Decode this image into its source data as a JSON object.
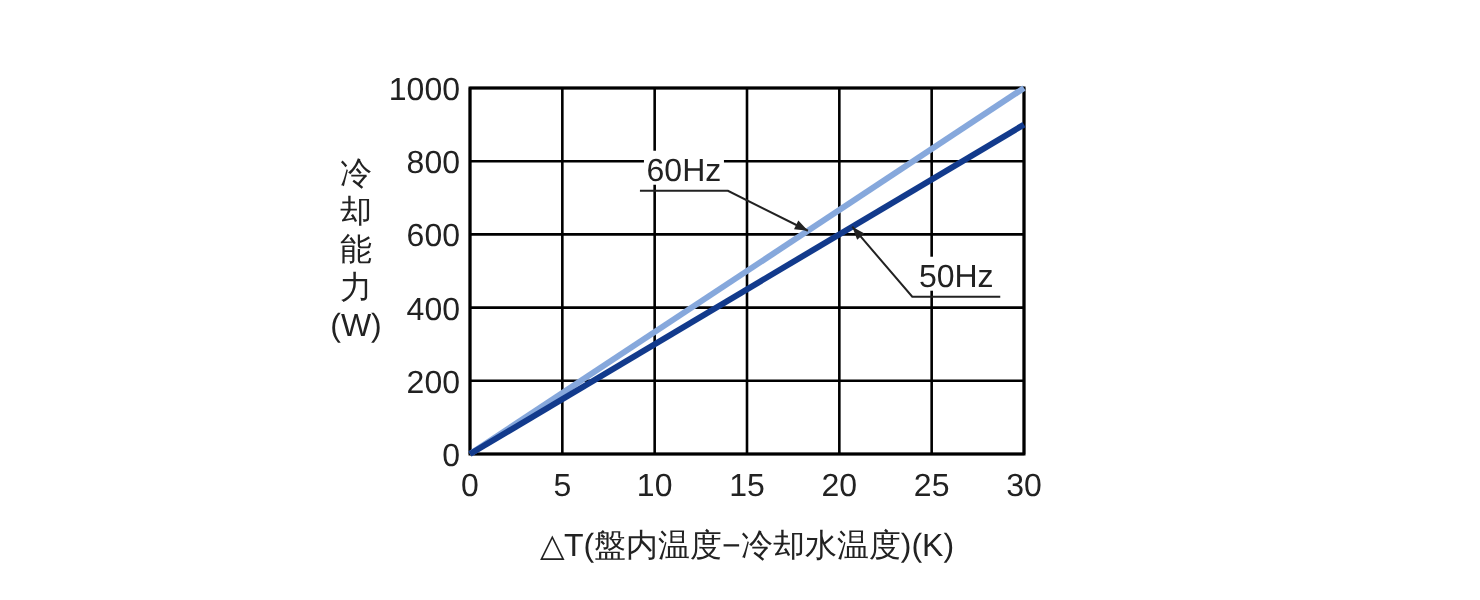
{
  "chart_data": {
    "type": "line",
    "xlabel": "△T(盤内温度−冷却水温度)(K)",
    "ylabel": "冷却能力(W)",
    "x": [
      0,
      30
    ],
    "series": [
      {
        "name": "60Hz",
        "color": "#86a8dc",
        "values": [
          0,
          1000
        ]
      },
      {
        "name": "50Hz",
        "color": "#123a8c",
        "values": [
          0,
          900
        ]
      }
    ],
    "xlim": [
      0,
      30
    ],
    "xticks": [
      0,
      5,
      10,
      15,
      20,
      25,
      30
    ],
    "ylim": [
      0,
      1000
    ],
    "yticks": [
      0,
      200,
      400,
      600,
      800,
      1000
    ],
    "grid": true,
    "line_style": "solid"
  }
}
